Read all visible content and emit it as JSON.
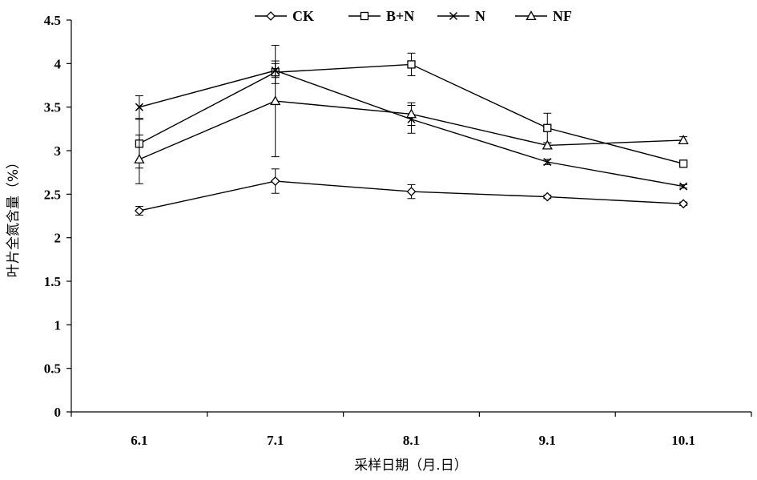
{
  "chart_data": {
    "type": "line",
    "title": "",
    "xlabel": "采样日期（月.日）",
    "ylabel": "叶片全氮含量（%）",
    "categories": [
      "6.1",
      "7.1",
      "8.1",
      "9.1",
      "10.1"
    ],
    "ylim": [
      0,
      4.5
    ],
    "yticks": [
      "0",
      "0.5",
      "1",
      "1.5",
      "2",
      "2.5",
      "3",
      "3.5",
      "4",
      "4.5"
    ],
    "grid": false,
    "legend_position": "top",
    "series": [
      {
        "name": "CK",
        "marker": "diamond",
        "values": [
          2.31,
          2.65,
          2.53,
          2.47,
          2.39
        ],
        "errors": [
          0.05,
          0.14,
          0.08,
          0.02,
          0.02
        ]
      },
      {
        "name": "B+N",
        "marker": "square",
        "values": [
          3.08,
          3.9,
          3.99,
          3.26,
          2.85
        ],
        "errors": [
          0.28,
          0.13,
          0.13,
          0.17,
          0.02
        ]
      },
      {
        "name": "N",
        "marker": "x",
        "values": [
          3.5,
          3.92,
          3.36,
          2.87,
          2.59
        ],
        "errors": [
          0.13,
          0.08,
          0.16,
          0.03,
          0.02
        ]
      },
      {
        "name": "NF",
        "marker": "triangle",
        "values": [
          2.9,
          3.57,
          3.42,
          3.06,
          3.12
        ],
        "errors": [
          0.28,
          0.64,
          0.13,
          0.03,
          0.04
        ]
      }
    ]
  }
}
